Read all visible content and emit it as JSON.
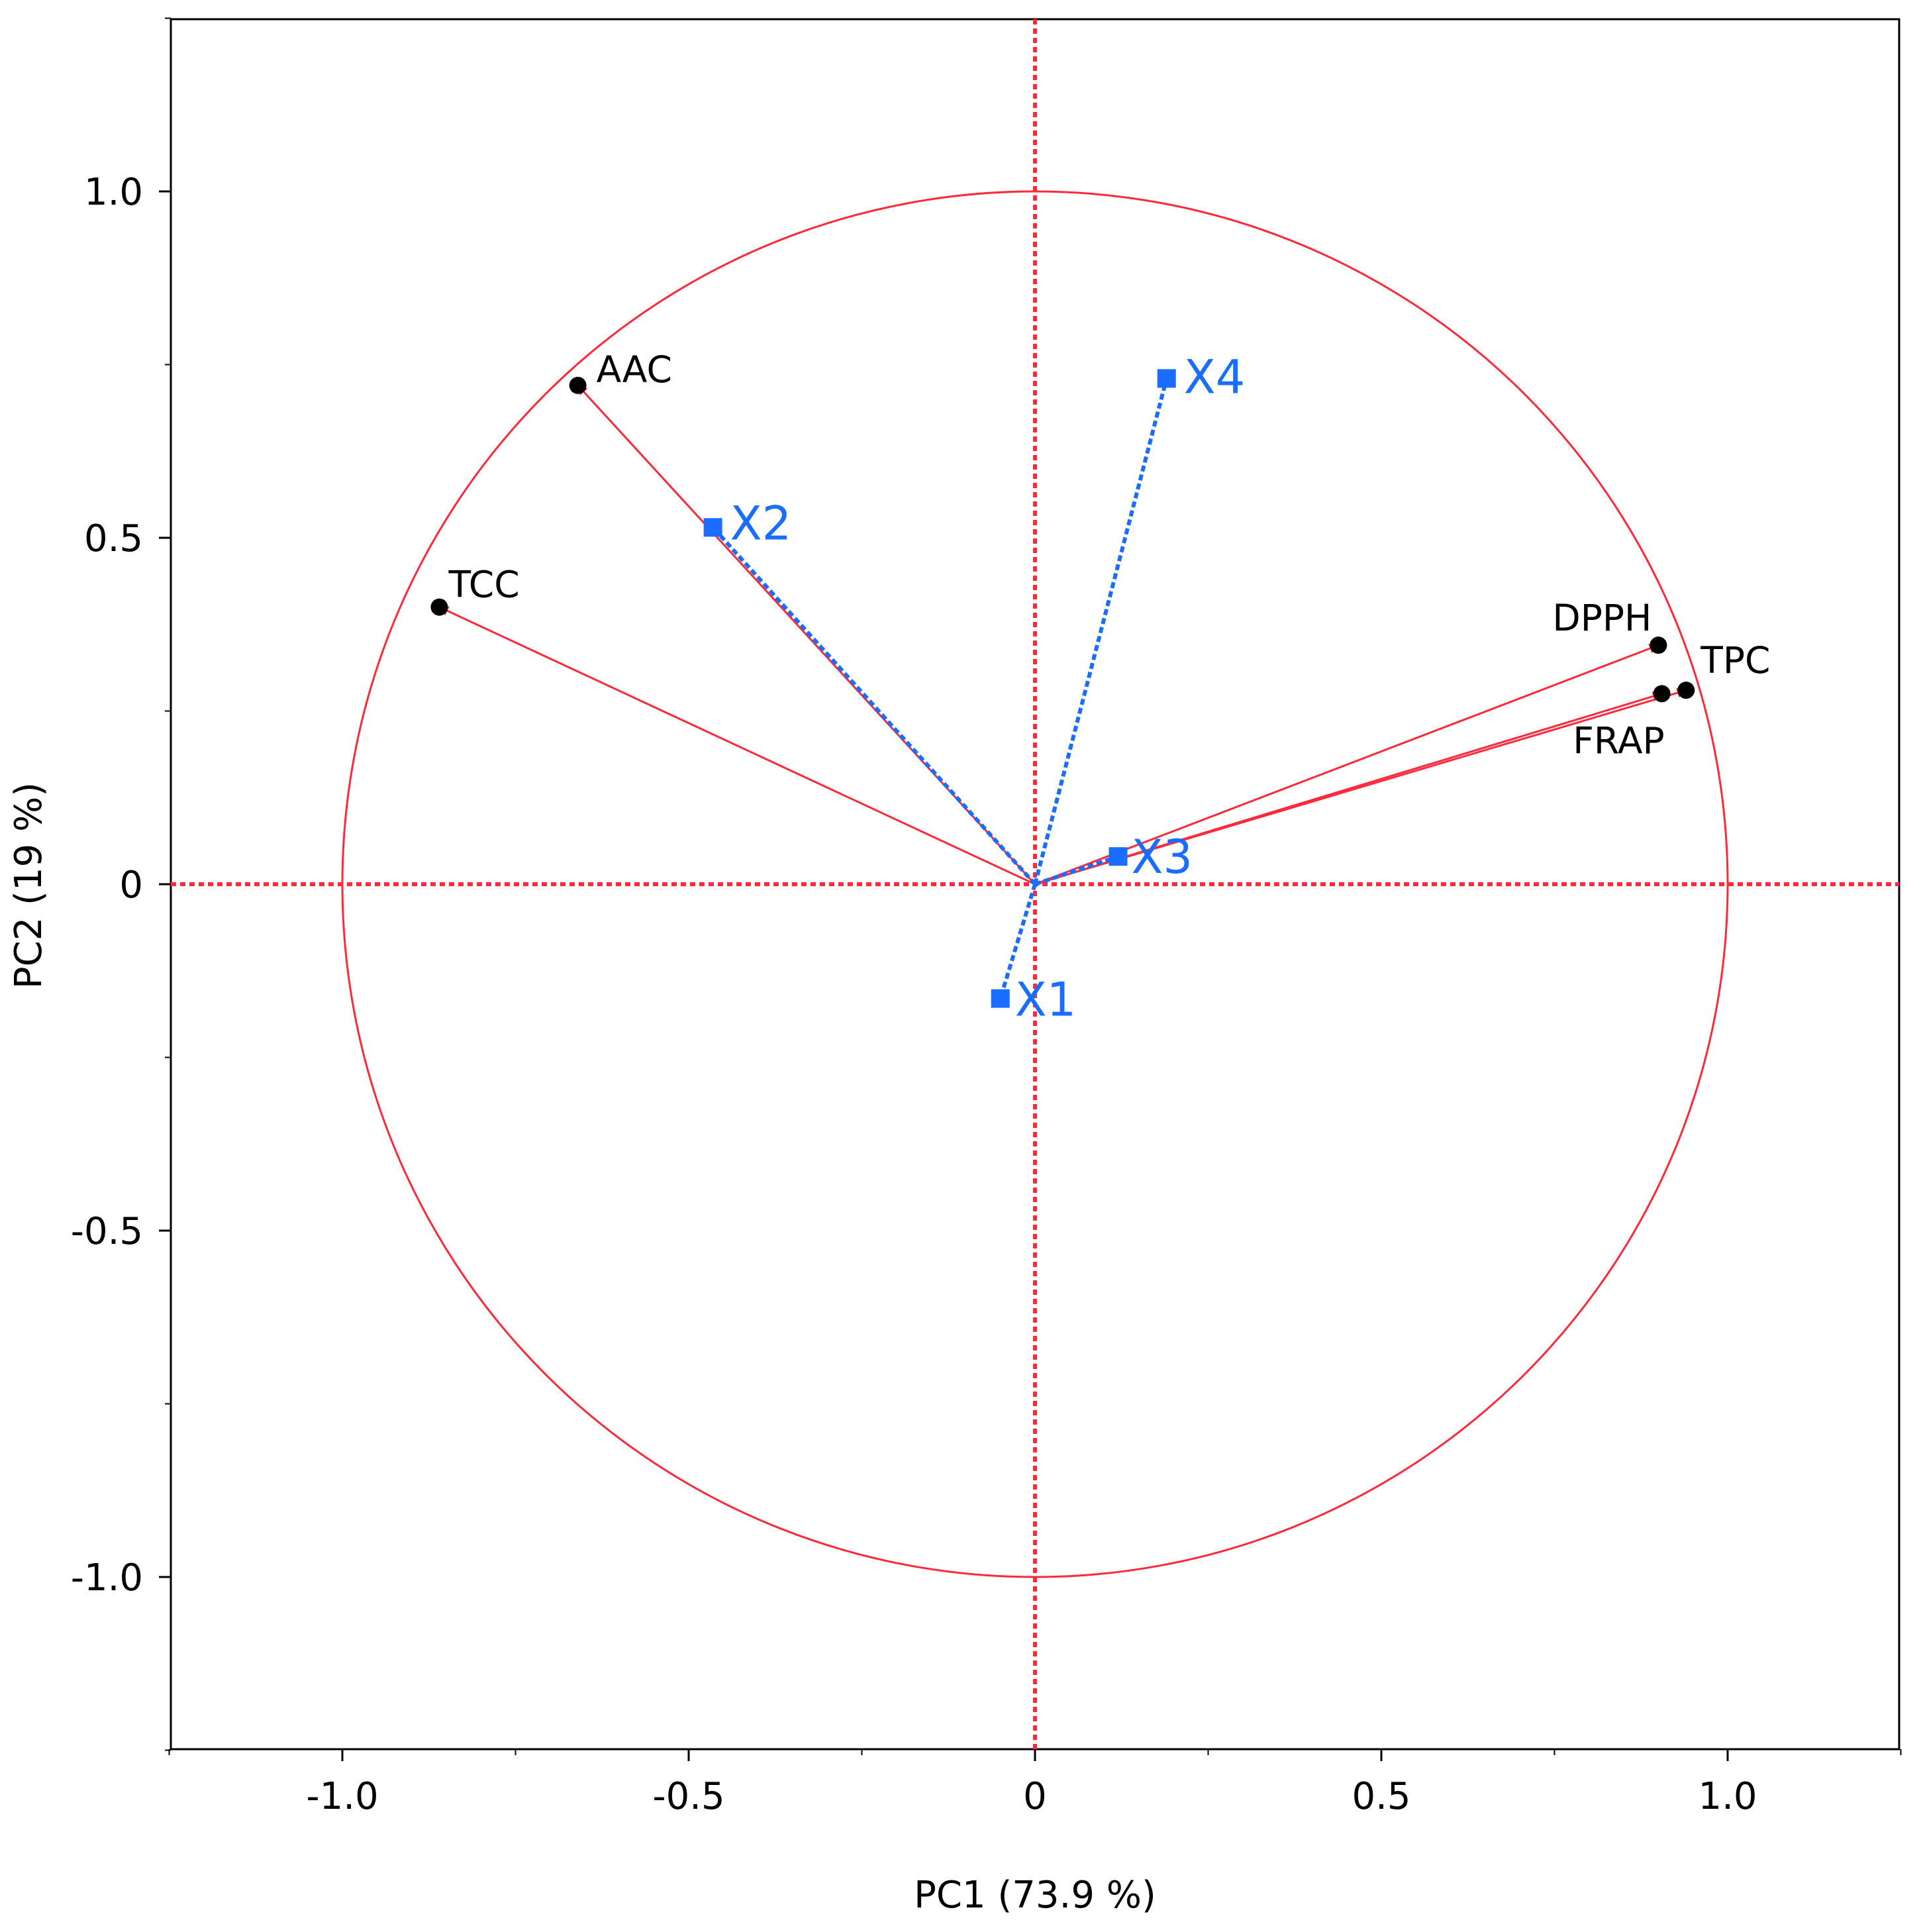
{
  "chart_data": {
    "type": "scatter",
    "subtype": "pca-correlation-circle",
    "title": "",
    "xlabel": "PC1  (73.9 %)",
    "ylabel": "PC2  (19 %)",
    "xlim": [
      -1.25,
      1.25
    ],
    "ylim": [
      -1.25,
      1.25
    ],
    "x_ticks": [
      -1.0,
      -0.5,
      0,
      0.5,
      1.0
    ],
    "x_tick_labels": [
      "-1.0",
      "-0.5",
      "0",
      "0.5",
      "1.0"
    ],
    "y_ticks": [
      1.0,
      0.5,
      0,
      -0.5,
      -1.0
    ],
    "y_tick_labels": [
      "1.0",
      "0.5",
      "0",
      "-0.5",
      "-1.0"
    ],
    "grid": false,
    "unit_circle_radius": 1.0,
    "series": [
      {
        "role": "active-variables",
        "color": "#ff2a3c",
        "marker": "circle",
        "points": [
          {
            "label": "AAC",
            "x": -0.66,
            "y": 0.72
          },
          {
            "label": "TCC",
            "x": -0.86,
            "y": 0.4
          },
          {
            "label": "DPPH",
            "x": 0.9,
            "y": 0.345
          },
          {
            "label": "TPC",
            "x": 0.94,
            "y": 0.28
          },
          {
            "label": "FRAP",
            "x": 0.905,
            "y": 0.275
          }
        ]
      },
      {
        "role": "supplementary-variables",
        "color": "#1a6dff",
        "marker": "square",
        "points": [
          {
            "label": "X1",
            "x": -0.05,
            "y": -0.165
          },
          {
            "label": "X2",
            "x": -0.465,
            "y": 0.515
          },
          {
            "label": "X3",
            "x": 0.12,
            "y": 0.04
          },
          {
            "label": "X4",
            "x": 0.19,
            "y": 0.73
          }
        ]
      }
    ]
  }
}
